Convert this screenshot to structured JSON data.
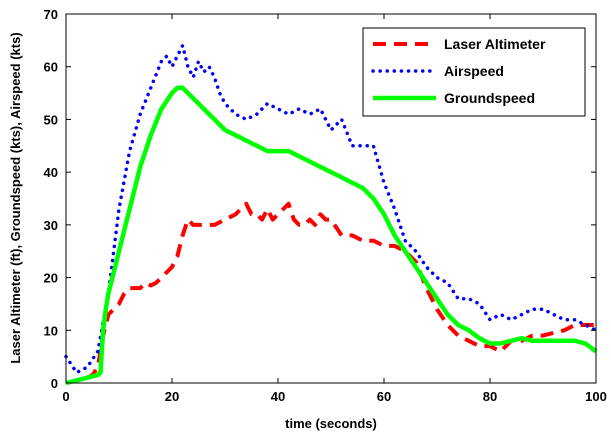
{
  "chart_data": {
    "type": "line",
    "title": "",
    "xlabel": "time  (seconds)",
    "ylabel": "Laser Altimeter (ft), Groundspeed (kts), Airspeed (kts)",
    "xlim": [
      0,
      100
    ],
    "ylim": [
      0,
      70
    ],
    "xticks": [
      "0",
      "20",
      "40",
      "60",
      "80",
      "100"
    ],
    "yticks": [
      "0",
      "10",
      "20",
      "30",
      "40",
      "50",
      "60",
      "70"
    ],
    "grid": false,
    "legend_position": "top-right",
    "series": [
      {
        "name": "Laser Altimeter",
        "color": "#ff0000",
        "style": "dashed",
        "x": [
          0,
          2,
          4,
          5,
          6,
          7,
          8,
          9,
          10,
          11,
          12,
          13,
          14,
          15,
          16,
          17,
          18,
          19,
          20,
          21,
          22,
          23,
          24,
          25,
          26,
          28,
          30,
          32,
          33,
          34,
          35,
          36,
          37,
          38,
          39,
          40,
          41,
          42,
          43,
          44,
          45,
          46,
          47,
          48,
          49,
          50,
          52,
          54,
          56,
          58,
          60,
          62,
          64,
          66,
          68,
          70,
          72,
          74,
          76,
          78,
          80,
          82,
          84,
          86,
          88,
          90,
          92,
          94,
          96,
          98,
          100
        ],
        "y": [
          0,
          0.5,
          1,
          1.5,
          3,
          9,
          13,
          14,
          15,
          17,
          18,
          18,
          18,
          19,
          18.5,
          19,
          20,
          21,
          22,
          24,
          28,
          31,
          30,
          30,
          30,
          30,
          31,
          32,
          33,
          34,
          32,
          32,
          31,
          33,
          31,
          32,
          33,
          34,
          31,
          30,
          30,
          31,
          30,
          32,
          31,
          31,
          28,
          28,
          27,
          27,
          26,
          26,
          25,
          23,
          18,
          14,
          11,
          9,
          8,
          7,
          7,
          6,
          8,
          8,
          9,
          9,
          9.5,
          10,
          11,
          11,
          11
        ]
      },
      {
        "name": "Airspeed",
        "color": "#0000ff",
        "style": "dotted",
        "x": [
          0,
          2,
          4,
          6,
          8,
          10,
          12,
          14,
          16,
          18,
          19,
          20,
          21,
          22,
          23,
          24,
          25,
          26,
          27,
          28,
          29,
          30,
          32,
          34,
          36,
          38,
          40,
          42,
          44,
          46,
          48,
          50,
          52,
          54,
          56,
          58,
          60,
          62,
          64,
          66,
          68,
          70,
          72,
          74,
          76,
          78,
          80,
          82,
          84,
          86,
          88,
          90,
          92,
          94,
          96,
          98,
          100
        ],
        "y": [
          5,
          2,
          3,
          6,
          17,
          33,
          44,
          51,
          56,
          61,
          62,
          60,
          62,
          64,
          60,
          58,
          61,
          59,
          60,
          58,
          55,
          53,
          51,
          50,
          51,
          53,
          52,
          51,
          52,
          51,
          52,
          48,
          50,
          45,
          45,
          45,
          38,
          33,
          27,
          25,
          22,
          20,
          19,
          16,
          16,
          15,
          12,
          13,
          12,
          13,
          14,
          14,
          13,
          12,
          12,
          11,
          10
        ]
      },
      {
        "name": "Groundspeed",
        "color": "#00ff00",
        "style": "solid",
        "x": [
          0,
          2,
          4,
          6,
          6.5,
          7,
          7.5,
          8,
          10,
          12,
          14,
          16,
          18,
          20,
          21,
          22,
          24,
          26,
          28,
          30,
          32,
          34,
          36,
          38,
          40,
          42,
          44,
          46,
          48,
          50,
          52,
          54,
          56,
          58,
          60,
          62,
          64,
          66,
          68,
          70,
          72,
          74,
          76,
          78,
          80,
          82,
          84,
          86,
          88,
          90,
          92,
          94,
          96,
          98,
          100
        ],
        "y": [
          0,
          0.5,
          1,
          1.5,
          2,
          10,
          14,
          17,
          25,
          33,
          41,
          47,
          52,
          55,
          56,
          56,
          54,
          52,
          50,
          48,
          47,
          46,
          45,
          44,
          44,
          44,
          43,
          42,
          41,
          40,
          39,
          38,
          37,
          35,
          32,
          28,
          25,
          22,
          19,
          16,
          13,
          11,
          10,
          8.5,
          7.5,
          7.5,
          8,
          8.5,
          8,
          8,
          8,
          8,
          8,
          7.5,
          6
        ]
      }
    ]
  }
}
